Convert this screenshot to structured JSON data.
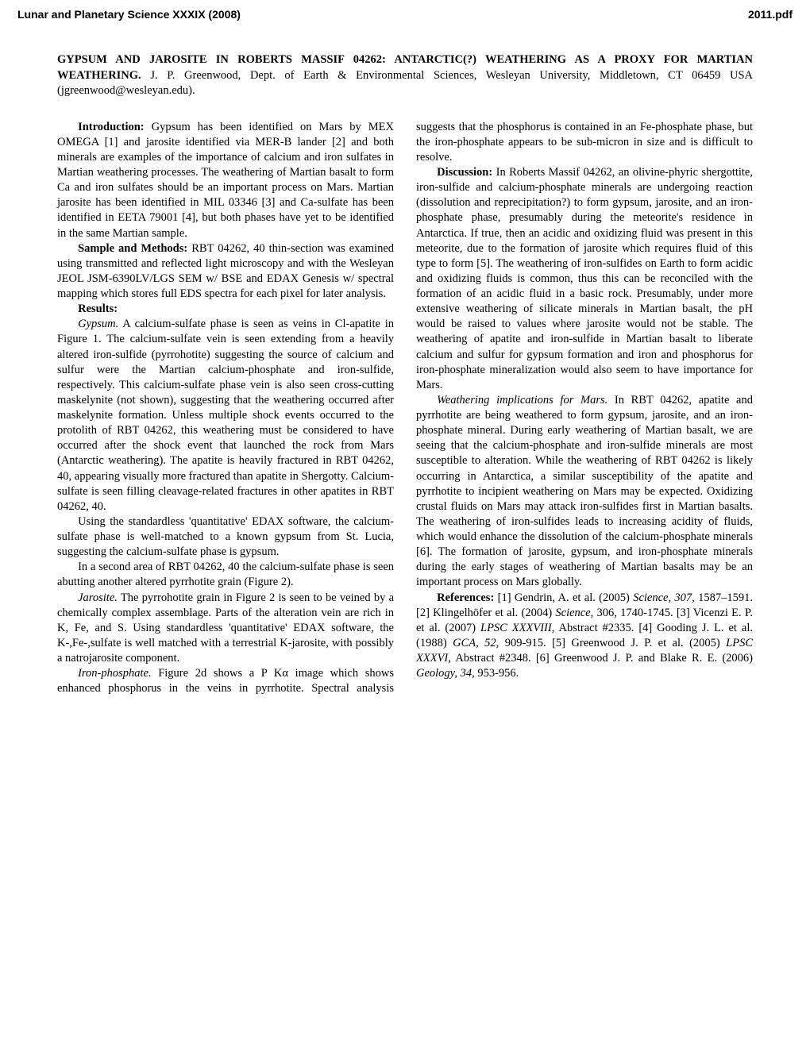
{
  "header": {
    "left": "Lunar and Planetary Science XXXIX (2008)",
    "right": "2011.pdf"
  },
  "title": {
    "bold1": "GYPSUM AND JAROSITE IN ROBERTS MASSIF 04262: ANTARCTIC(?) WEATHERING AS A PROXY FOR MARTIAN WEATHERING.",
    "rest": " J. P. Greenwood, Dept. of Earth & Environmental Sciences, Wesleyan University, Middletown, CT 06459 USA (jgreenwood@wesleyan.edu)."
  },
  "p1_label": "Introduction:",
  "p1": " Gypsum has been identified on Mars by MEX OMEGA [1] and jarosite identified via MER-B lander [2] and both minerals are examples of the importance of calcium and iron sulfates in Martian weathering processes. The weathering of Martian basalt to form Ca and iron sulfates should be an important process on Mars. Martian jarosite has been identified in MIL 03346 [3] and Ca-sulfate has been identified in EETA 79001 [4], but both phases have yet to be identified in the same Martian sample.",
  "p2_label": "Sample and Methods:",
  "p2": " RBT 04262, 40 thin-section was examined using transmitted and reflected light microscopy and with the Wesleyan JEOL JSM-6390LV/LGS SEM w/ BSE and EDAX Genesis w/ spectral mapping which stores full EDS spectra for each pixel for later analysis.",
  "p3_label": "Results:",
  "p4_label": "Gypsum.",
  "p4": " A calcium-sulfate phase is seen as veins in Cl-apatite in Figure 1. The calcium-sulfate vein is seen extending from a heavily altered iron-sulfide (pyrrohotite) suggesting the source of calcium and sulfur were the Martian calcium-phosphate and iron-sulfide, respectively. This calcium-sulfate phase vein is also seen cross-cutting maskelynite (not shown), suggesting that the weathering occurred after maskelynite formation. Unless multiple shock events occurred to the protolith of RBT 04262, this weathering must be considered to have occurred after the shock event that launched the rock from Mars (Antarctic weathering). The apatite is heavily fractured in RBT 04262, 40, appearing visually more fractured than apatite in Shergotty. Calcium-sulfate is seen filling cleavage-related fractures in other apatites in RBT 04262, 40.",
  "p5": "Using the standardless 'quantitative' EDAX software, the calcium-sulfate phase is well-matched to a known gypsum from St. Lucia, suggesting the calcium-sulfate phase is gypsum.",
  "p6": "In a second area of RBT 04262, 40 the calcium-sulfate phase is seen abutting another altered pyrrhotite grain (Figure 2).",
  "p7_label": "Jarosite.",
  "p7": " The pyrrohotite grain in Figure 2 is seen to be veined by a chemically complex assemblage. Parts of the alteration vein are rich in K, Fe, and S. Using standardless 'quantitative' EDAX software, the K-,Fe-,sulfate is well matched with a terrestrial K-jarosite, with possibly a natrojarosite component.",
  "p8_label": "Iron-phosphate.",
  "p8": " Figure 2d shows a P Kα image which shows enhanced phosphorus in the veins in pyrrhotite. Spectral analysis suggests that the phosphorus is contained in an Fe-phosphate phase, but the iron-phosphate appears to be sub-micron in size and is difficult to resolve.",
  "p9_label": "Discussion:",
  "p9": " In Roberts Massif 04262, an olivine-phyric shergottite, iron-sulfide and calcium-phosphate minerals are undergoing reaction (dissolution and reprecipitation?) to form gypsum, jarosite, and an iron-phosphate phase, presumably during the meteorite's residence in Antarctica. If true, then an acidic and oxidizing fluid was present in this meteorite, due to the formation of jarosite which requires fluid of this type to form [5]. The weathering of iron-sulfides on Earth to form acidic and oxidizing fluids is common, thus this can be reconciled with the formation of an acidic fluid in a basic rock. Presumably, under more extensive weathering of silicate minerals in Martian basalt, the pH would be raised to values where jarosite would not be stable. The weathering of apatite and iron-sulfide in Martian basalt to liberate calcium and sulfur for gypsum formation and iron and phosphorus for iron-phosphate mineralization would also seem to have importance for Mars.",
  "p10_label": "Weathering implications for Mars.",
  "p10": " In RBT 04262, apatite and pyrrhotite are being weathered to form gypsum, jarosite, and an iron-phosphate mineral. During early weathering of Martian basalt, we are seeing that the calcium-phosphate and iron-sulfide minerals are most susceptible to alteration. While the weathering of RBT 04262 is likely occurring in Antarctica, a similar susceptibility of the apatite and pyrrhotite to incipient weathering on Mars may be expected. Oxidizing crustal fluids on Mars may attack iron-sulfides first in Martian basalts. The weathering of iron-sulfides leads to increasing acidity of fluids, which would enhance the dissolution of the calcium-phosphate minerals [6]. The formation of jarosite, gypsum, and iron-phosphate minerals during the early stages of weathering of Martian basalts may be an important process on Mars globally.",
  "p11_label": "References:",
  "p11a": " [1] Gendrin, A. et al. (2005) ",
  "p11b": "Science, 307,",
  "p11c": " 1587–1591. [2] Klingelhöfer et al. (2004) ",
  "p11d": "Science,",
  "p11e": " 306, 1740-1745. [3] Vicenzi E. P. et al. (2007) ",
  "p11f": "LPSC XXXVIII,",
  "p11g": " Abstract #2335. [4] Gooding J. L. et al. (1988) ",
  "p11h": "GCA, 52,",
  "p11i": " 909-915. [5] Greenwood J. P. et al. (2005) ",
  "p11j": "LPSC XXXVI,",
  "p11k": " Abstract #2348. [6] Greenwood J. P. and Blake R. E. (2006) ",
  "p11l": "Geology, 34,",
  "p11m": " 953-956."
}
